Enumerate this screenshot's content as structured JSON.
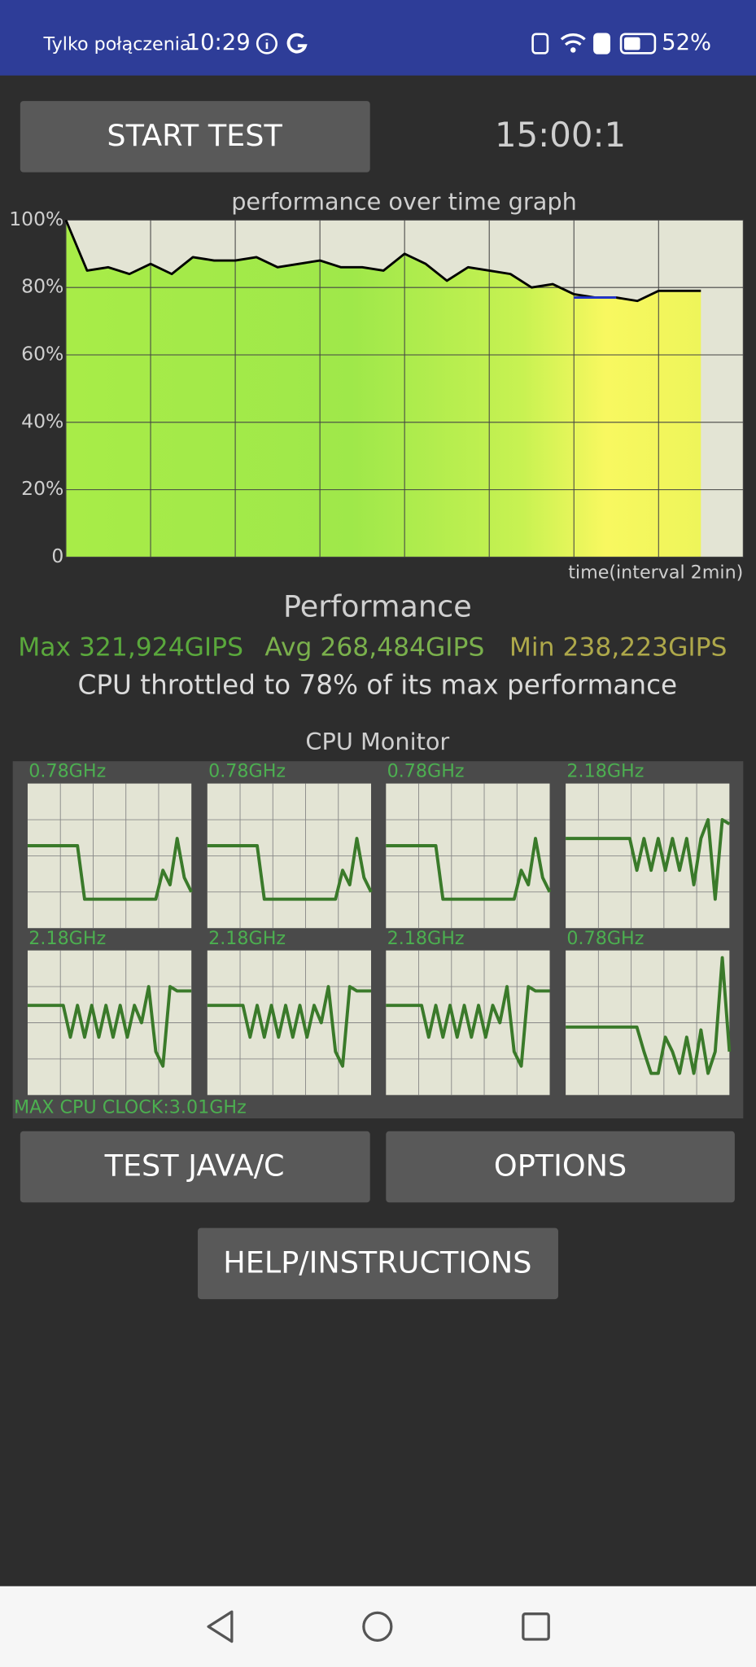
{
  "status_bar": {
    "carrier": "Tylko połączenia",
    "time": "10:29",
    "battery": "52%"
  },
  "start_button": "START TEST",
  "timer": "15:00:1",
  "chart_data": {
    "type": "line",
    "title": "performance over time graph",
    "x_label": "time(interval 2min)",
    "x": [
      0,
      0.5,
      1,
      1.5,
      2,
      2.5,
      3,
      3.5,
      4,
      4.5,
      5,
      5.5,
      6,
      6.5,
      7,
      7.5,
      8,
      8.5,
      9,
      9.5,
      10,
      10.5,
      11,
      11.5,
      12,
      12.5,
      13,
      13.5,
      14,
      14.5,
      15
    ],
    "xlim": [
      0,
      16
    ],
    "series": [
      {
        "color": "#000000",
        "values": [
          100,
          85,
          86,
          84,
          87,
          84,
          89,
          88,
          88,
          89,
          86,
          87,
          88,
          86,
          86,
          85,
          90,
          87,
          82,
          86,
          85,
          84,
          80,
          81,
          78,
          77,
          77,
          76,
          79,
          79,
          79
        ]
      },
      {
        "color": "#2233cc",
        "values": [
          null,
          null,
          null,
          null,
          null,
          null,
          null,
          null,
          null,
          null,
          null,
          null,
          null,
          null,
          null,
          null,
          null,
          null,
          null,
          null,
          null,
          null,
          null,
          null,
          77,
          77,
          77,
          null,
          null,
          null,
          null
        ]
      }
    ],
    "ylim": [
      0,
      100
    ],
    "yticks": [
      0,
      {
        "value": 20,
        "label": "20%"
      },
      {
        "value": 40,
        "label": "40%"
      },
      {
        "value": 60,
        "label": "60%"
      },
      {
        "value": 80,
        "label": "80%"
      },
      {
        "value": 100,
        "label": "100%"
      }
    ],
    "grid": true
  },
  "performance": {
    "heading": "Performance",
    "max": "Max 321,924GIPS",
    "avg": "Avg 268,484GIPS",
    "min": "Min 238,223GIPS",
    "note": "CPU throttled to 78% of its max performance"
  },
  "cpu_monitor": {
    "title": "CPU Monitor",
    "max_clock": "MAX CPU CLOCK:3.01GHz",
    "ylim": [
      0,
      100
    ],
    "cores": [
      {
        "freq": "0.78GHz",
        "values": [
          57,
          57,
          57,
          57,
          57,
          57,
          57,
          57,
          20,
          20,
          20,
          20,
          20,
          20,
          20,
          20,
          20,
          20,
          20,
          40,
          30,
          62,
          35,
          25
        ]
      },
      {
        "freq": "0.78GHz",
        "values": [
          57,
          57,
          57,
          57,
          57,
          57,
          57,
          57,
          20,
          20,
          20,
          20,
          20,
          20,
          20,
          20,
          20,
          20,
          20,
          40,
          30,
          62,
          35,
          25
        ]
      },
      {
        "freq": "0.78GHz",
        "values": [
          57,
          57,
          57,
          57,
          57,
          57,
          57,
          57,
          20,
          20,
          20,
          20,
          20,
          20,
          20,
          20,
          20,
          20,
          20,
          40,
          30,
          62,
          35,
          25
        ]
      },
      {
        "freq": "2.18GHz",
        "values": [
          62,
          62,
          62,
          62,
          62,
          62,
          62,
          62,
          62,
          62,
          40,
          62,
          40,
          62,
          40,
          62,
          40,
          62,
          30,
          62,
          75,
          20,
          75,
          72
        ]
      },
      {
        "freq": "2.18GHz",
        "values": [
          62,
          62,
          62,
          62,
          62,
          62,
          40,
          62,
          40,
          62,
          40,
          62,
          40,
          62,
          40,
          62,
          50,
          75,
          30,
          20,
          75,
          72,
          72,
          72
        ]
      },
      {
        "freq": "2.18GHz",
        "values": [
          62,
          62,
          62,
          62,
          62,
          62,
          40,
          62,
          40,
          62,
          40,
          62,
          40,
          62,
          40,
          62,
          50,
          75,
          30,
          20,
          75,
          72,
          72,
          72
        ]
      },
      {
        "freq": "2.18GHz",
        "values": [
          62,
          62,
          62,
          62,
          62,
          62,
          40,
          62,
          40,
          62,
          40,
          62,
          40,
          62,
          40,
          62,
          50,
          75,
          30,
          20,
          75,
          72,
          72,
          72
        ]
      },
      {
        "freq": "0.78GHz",
        "values": [
          47,
          47,
          47,
          47,
          47,
          47,
          47,
          47,
          47,
          47,
          47,
          30,
          15,
          15,
          40,
          30,
          15,
          40,
          15,
          45,
          15,
          30,
          95,
          30
        ]
      }
    ]
  },
  "buttons": {
    "test": "TEST JAVA/C",
    "options": "OPTIONS",
    "help": "HELP/INSTRUCTIONS"
  }
}
